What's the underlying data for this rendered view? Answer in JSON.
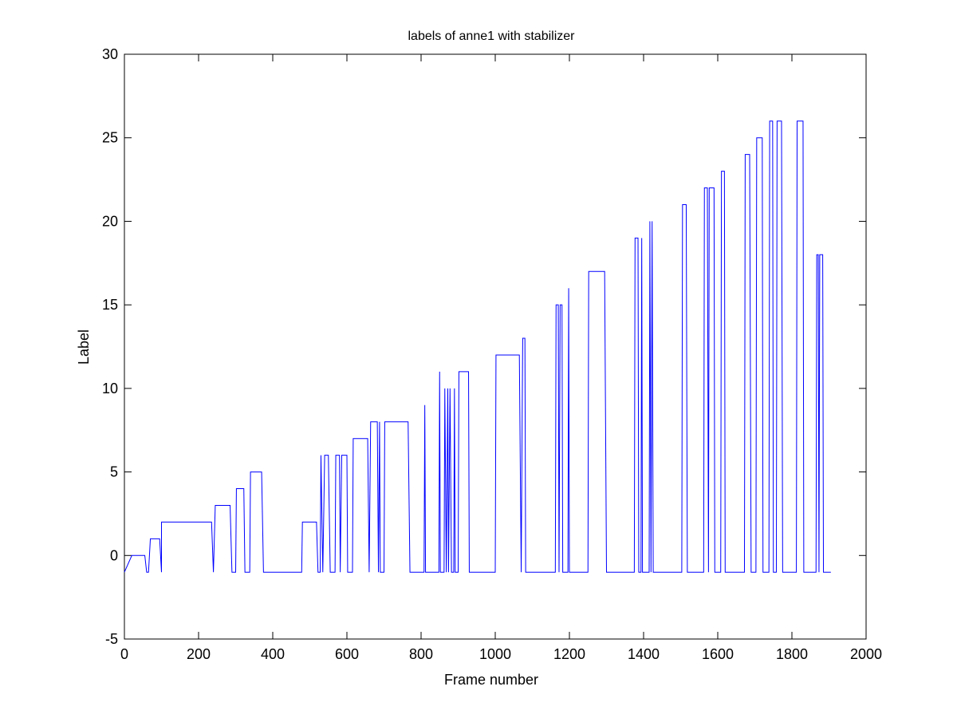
{
  "chart_data": {
    "type": "line",
    "title": "labels of anne1 with stabilizer",
    "xlabel": "Frame number",
    "ylabel": "Label",
    "xlim": [
      0,
      2000
    ],
    "ylim": [
      -5,
      30
    ],
    "x_ticks": [
      0,
      200,
      400,
      600,
      800,
      1000,
      1200,
      1400,
      1600,
      1800,
      2000
    ],
    "y_ticks": [
      -5,
      0,
      5,
      10,
      15,
      20,
      25,
      30
    ],
    "grid": false,
    "legend": "none",
    "line_color": "#0000ff",
    "series": [
      {
        "step_segments": [
          [
            0,
            -1
          ],
          [
            20,
            0
          ],
          [
            55,
            0
          ],
          [
            60,
            -1
          ],
          [
            65,
            -1
          ],
          [
            70,
            1
          ],
          [
            95,
            1
          ],
          [
            100,
            -1
          ],
          [
            100,
            2
          ],
          [
            235,
            2
          ],
          [
            240,
            -1
          ],
          [
            245,
            3
          ],
          [
            285,
            3
          ],
          [
            290,
            -1
          ],
          [
            300,
            -1
          ],
          [
            302,
            4
          ],
          [
            322,
            4
          ],
          [
            325,
            -1
          ],
          [
            338,
            -1
          ],
          [
            340,
            5
          ],
          [
            370,
            5
          ],
          [
            375,
            -1
          ],
          [
            478,
            -1
          ],
          [
            480,
            2
          ],
          [
            518,
            2
          ],
          [
            522,
            -1
          ],
          [
            528,
            -1
          ],
          [
            530,
            6
          ],
          [
            535,
            -1
          ],
          [
            540,
            6
          ],
          [
            550,
            6
          ],
          [
            555,
            -1
          ],
          [
            568,
            -1
          ],
          [
            570,
            6
          ],
          [
            580,
            6
          ],
          [
            582,
            -1
          ],
          [
            586,
            6
          ],
          [
            600,
            6
          ],
          [
            602,
            -1
          ],
          [
            615,
            -1
          ],
          [
            617,
            7
          ],
          [
            656,
            7
          ],
          [
            660,
            -1
          ],
          [
            664,
            8
          ],
          [
            682,
            8
          ],
          [
            685,
            -1
          ],
          [
            688,
            8
          ],
          [
            690,
            -1
          ],
          [
            700,
            -1
          ],
          [
            702,
            8
          ],
          [
            765,
            8
          ],
          [
            770,
            -1
          ],
          [
            808,
            -1
          ],
          [
            810,
            9
          ],
          [
            812,
            -1
          ],
          [
            848,
            -1
          ],
          [
            850,
            11
          ],
          [
            852,
            -1
          ],
          [
            862,
            -1
          ],
          [
            864,
            10
          ],
          [
            868,
            -1
          ],
          [
            872,
            10
          ],
          [
            874,
            -1
          ],
          [
            878,
            10
          ],
          [
            882,
            -1
          ],
          [
            888,
            -1
          ],
          [
            890,
            10
          ],
          [
            892,
            -1
          ],
          [
            900,
            -1
          ],
          [
            902,
            11
          ],
          [
            928,
            11
          ],
          [
            930,
            -1
          ],
          [
            1000,
            -1
          ],
          [
            1002,
            12
          ],
          [
            1065,
            12
          ],
          [
            1070,
            -1
          ],
          [
            1074,
            13
          ],
          [
            1080,
            13
          ],
          [
            1082,
            -1
          ],
          [
            1162,
            -1
          ],
          [
            1164,
            15
          ],
          [
            1170,
            15
          ],
          [
            1172,
            -1
          ],
          [
            1175,
            15
          ],
          [
            1180,
            15
          ],
          [
            1182,
            -1
          ],
          [
            1196,
            -1
          ],
          [
            1198,
            16
          ],
          [
            1200,
            -1
          ],
          [
            1250,
            -1
          ],
          [
            1252,
            17
          ],
          [
            1295,
            17
          ],
          [
            1300,
            -1
          ],
          [
            1375,
            -1
          ],
          [
            1377,
            19
          ],
          [
            1385,
            19
          ],
          [
            1387,
            -1
          ],
          [
            1393,
            -1
          ],
          [
            1395,
            19
          ],
          [
            1397,
            -1
          ],
          [
            1415,
            -1
          ],
          [
            1417,
            20
          ],
          [
            1420,
            -1
          ],
          [
            1423,
            20
          ],
          [
            1426,
            -1
          ],
          [
            1503,
            -1
          ],
          [
            1505,
            21
          ],
          [
            1515,
            21
          ],
          [
            1518,
            -1
          ],
          [
            1562,
            -1
          ],
          [
            1564,
            22
          ],
          [
            1572,
            22
          ],
          [
            1575,
            -1
          ],
          [
            1577,
            22
          ],
          [
            1590,
            22
          ],
          [
            1592,
            -1
          ],
          [
            1608,
            -1
          ],
          [
            1610,
            23
          ],
          [
            1618,
            23
          ],
          [
            1620,
            -1
          ],
          [
            1672,
            -1
          ],
          [
            1674,
            24
          ],
          [
            1686,
            24
          ],
          [
            1690,
            -1
          ],
          [
            1703,
            -1
          ],
          [
            1705,
            25
          ],
          [
            1720,
            25
          ],
          [
            1722,
            -1
          ],
          [
            1738,
            -1
          ],
          [
            1740,
            26
          ],
          [
            1748,
            26
          ],
          [
            1750,
            -1
          ],
          [
            1758,
            -1
          ],
          [
            1760,
            26
          ],
          [
            1772,
            26
          ],
          [
            1775,
            -1
          ],
          [
            1812,
            -1
          ],
          [
            1814,
            26
          ],
          [
            1830,
            26
          ],
          [
            1832,
            -1
          ],
          [
            1865,
            -1
          ],
          [
            1867,
            18
          ],
          [
            1871,
            18
          ],
          [
            1873,
            -1
          ],
          [
            1875,
            18
          ],
          [
            1883,
            18
          ],
          [
            1885,
            -1
          ],
          [
            1905,
            -1
          ]
        ]
      }
    ]
  }
}
